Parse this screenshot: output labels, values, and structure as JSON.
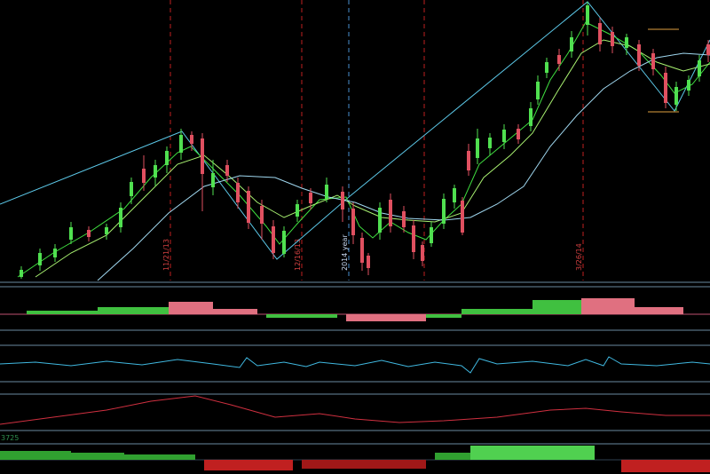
{
  "labels": {
    "date_1": "11/21/13",
    "date_2": "12/16/13",
    "year": "2014 year",
    "date_3": "3/26/14"
  },
  "bottom_panel": {
    "value": "3725"
  }
}
